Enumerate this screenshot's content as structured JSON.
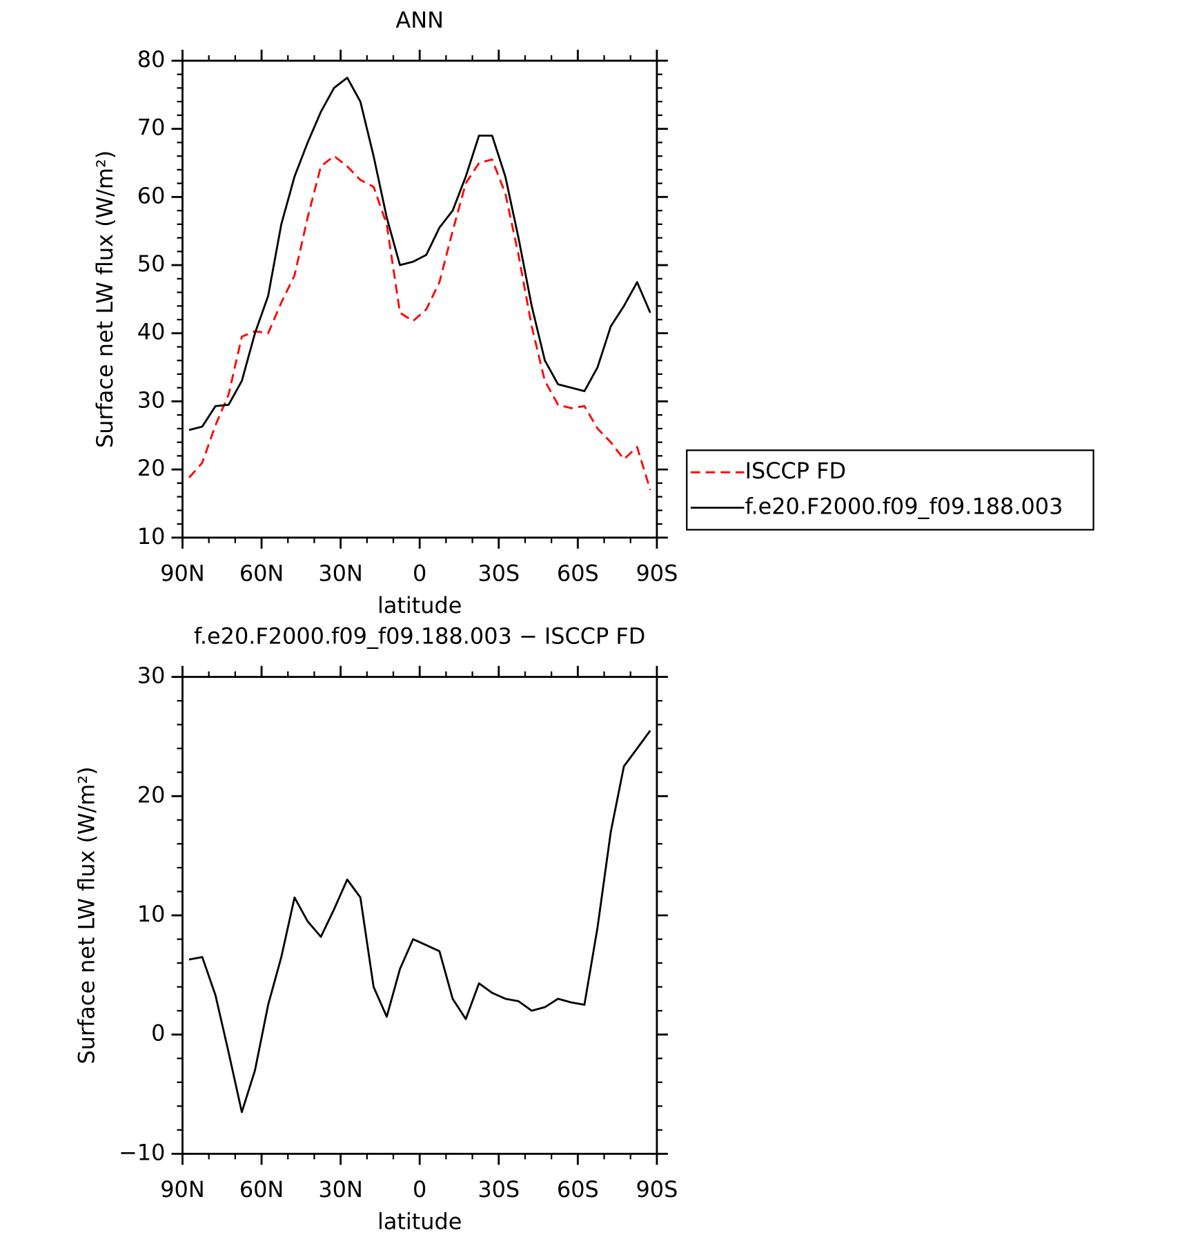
{
  "chart_data": [
    {
      "type": "line",
      "title": "ANN",
      "xlabel": "latitude",
      "ylabel": "Surface net LW flux (W/m²)",
      "x": [
        87.5,
        82.5,
        77.5,
        72.5,
        67.5,
        62.5,
        57.5,
        52.5,
        47.5,
        42.5,
        37.5,
        32.5,
        27.5,
        22.5,
        17.5,
        12.5,
        7.5,
        2.5,
        -2.5,
        -7.5,
        -12.5,
        -17.5,
        -22.5,
        -27.5,
        -32.5,
        -37.5,
        -42.5,
        -47.5,
        -52.5,
        -57.5,
        -62.5,
        -67.5,
        -72.5,
        -77.5,
        -82.5,
        -87.5
      ],
      "series": [
        {
          "name": "ISCCP FD",
          "color": "#ff0000",
          "dashed": true,
          "values": [
            18.8,
            21,
            26.5,
            31,
            39.5,
            40.3,
            40,
            44.5,
            48.5,
            57,
            64.5,
            66,
            64.5,
            62.5,
            61.5,
            56,
            43,
            41.8,
            43.5,
            47.5,
            55,
            62,
            65,
            65.5,
            60.5,
            51.5,
            41,
            33,
            29.5,
            29,
            29.3,
            26,
            24,
            21.5,
            23.3,
            17
          ]
        },
        {
          "name": "f.e20.F2000.f09_f09.188.003",
          "color": "#000000",
          "dashed": false,
          "values": [
            25.8,
            26.3,
            29.3,
            29.5,
            33,
            40,
            45.5,
            56,
            63,
            68,
            72.5,
            76,
            77.5,
            74,
            66,
            57,
            50,
            50.5,
            51.5,
            55.5,
            58,
            63,
            69,
            69,
            63,
            54,
            44,
            36,
            32.5,
            32,
            31.5,
            35,
            41,
            44,
            47.5,
            43
          ]
        }
      ],
      "xlim": [
        90,
        -90
      ],
      "ylim": [
        10,
        80
      ],
      "xticks": [
        {
          "value": 90,
          "label": "90N"
        },
        {
          "value": 60,
          "label": "60N"
        },
        {
          "value": 30,
          "label": "30N"
        },
        0,
        {
          "value": -30,
          "label": "30S"
        },
        {
          "value": -60,
          "label": "60S"
        },
        {
          "value": -90,
          "label": "90S"
        }
      ],
      "yticks": [
        10,
        20,
        30,
        40,
        50,
        60,
        70,
        80
      ],
      "legend": "right"
    },
    {
      "type": "line",
      "title": "f.e20.F2000.f09_f09.188.003 − ISCCP FD",
      "xlabel": "latitude",
      "ylabel": "Surface net LW flux (W/m²)",
      "x": [
        87.5,
        82.5,
        77.5,
        72.5,
        67.5,
        62.5,
        57.5,
        52.5,
        47.5,
        42.5,
        37.5,
        32.5,
        27.5,
        22.5,
        17.5,
        12.5,
        7.5,
        2.5,
        -2.5,
        -7.5,
        -12.5,
        -17.5,
        -22.5,
        -27.5,
        -32.5,
        -37.5,
        -42.5,
        -47.5,
        -52.5,
        -57.5,
        -62.5,
        -67.5,
        -72.5,
        -77.5,
        -82.5,
        -87.5
      ],
      "color": "#000000",
      "values": [
        6.3,
        6.5,
        3.3,
        -1.5,
        -6.5,
        -3,
        2.5,
        6.5,
        11.5,
        9.5,
        8.2,
        10.5,
        13,
        11.5,
        4,
        1.5,
        5.5,
        8,
        7.5,
        7,
        3,
        1.3,
        4.3,
        3.5,
        3,
        2.8,
        2,
        2.3,
        3,
        2.7,
        2.5,
        9,
        17,
        22.5,
        24,
        25.5
      ],
      "xlim": [
        90,
        -90
      ],
      "ylim": [
        -10,
        30
      ],
      "xticks": [
        {
          "value": 90,
          "label": "90N"
        },
        {
          "value": 60,
          "label": "60N"
        },
        {
          "value": 30,
          "label": "30N"
        },
        0,
        {
          "value": -30,
          "label": "30S"
        },
        {
          "value": -60,
          "label": "60S"
        },
        {
          "value": -90,
          "label": "90S"
        }
      ],
      "yticks": [
        {
          "value": -10,
          "label": "−10"
        },
        0,
        10,
        20,
        30
      ]
    }
  ]
}
